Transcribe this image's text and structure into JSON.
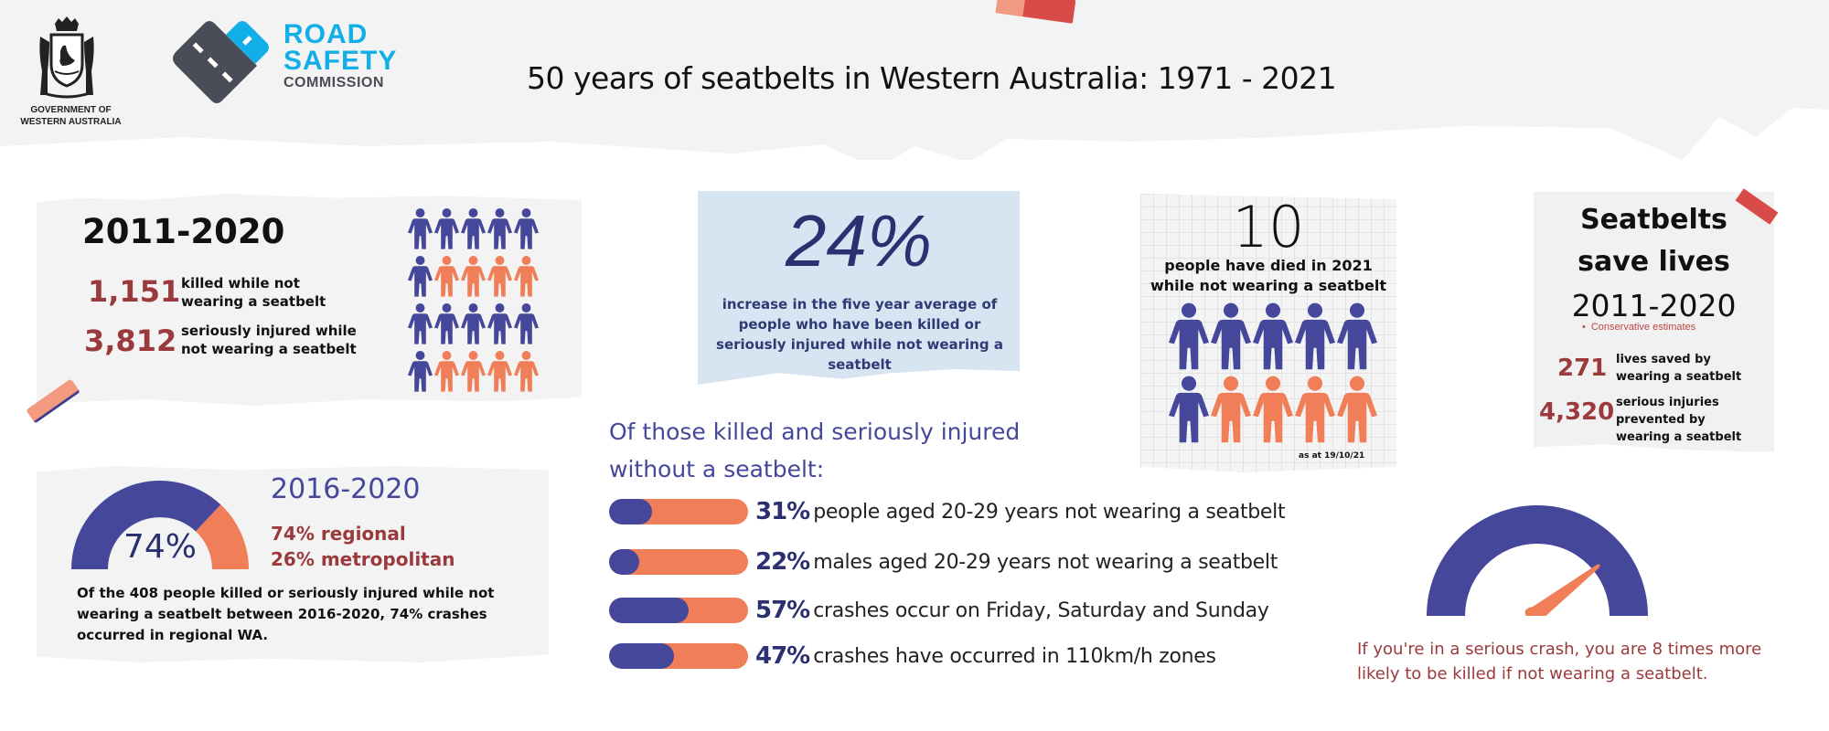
{
  "header": {
    "title": "50 years of seatbelts in Western Australia: 1971 - 2021",
    "gov_logo_text_line1": "GOVERNMENT OF",
    "gov_logo_text_line2": "WESTERN AUSTRALIA",
    "rsc_logo_line1": "ROAD",
    "rsc_logo_line2": "SAFETY",
    "rsc_logo_line3": "COMMISSION"
  },
  "colors": {
    "navy": "#45479b",
    "dark_navy": "#2b3071",
    "orange": "#f07e58",
    "maroon": "#9b3a3c",
    "road_blue": "#12aee8",
    "road_grey": "#4a4d57",
    "panel_grey": "#f3f3f3",
    "panel_blue": "#d7e4f1"
  },
  "panel_2011_2020": {
    "year": "2011-2020",
    "stats": [
      {
        "value": "1,151",
        "label_line1": "killed while not",
        "label_line2": "wearing a seatbelt"
      },
      {
        "value": "3,812",
        "label_line1": "seriously injured while",
        "label_line2": "not wearing a seatbelt"
      }
    ],
    "people_grid": {
      "rows": 4,
      "cols": 5,
      "colors": [
        "navy",
        "navy",
        "navy",
        "navy",
        "navy",
        "navy",
        "orange",
        "orange",
        "orange",
        "orange",
        "navy",
        "navy",
        "navy",
        "navy",
        "navy",
        "navy",
        "orange",
        "orange",
        "orange",
        "orange"
      ]
    }
  },
  "panel_increase": {
    "value": "24%",
    "description": "increase in the five year average of people who have been killed or seriously injured while not wearing a seatbelt"
  },
  "panel_2021_deaths": {
    "value": "10",
    "description_line1": "people have died in 2021",
    "description_line2": "while not wearing a seatbelt",
    "as_at": "as at 19/10/21",
    "people_grid": {
      "rows": 2,
      "cols": 5,
      "colors": [
        "navy",
        "navy",
        "navy",
        "navy",
        "navy",
        "navy",
        "orange",
        "orange",
        "orange",
        "orange"
      ]
    }
  },
  "panel_save_lives": {
    "title_line1": "Seatbelts",
    "title_line2": "save lives",
    "years": "2011-2020",
    "note": "Conservative estimates",
    "stats": [
      {
        "value": "271",
        "label_line1": "lives saved by",
        "label_line2": "wearing a seatbelt",
        "label_line3": ""
      },
      {
        "value": "4,320",
        "label_line1": "serious injuries",
        "label_line2": "prevented by",
        "label_line3": "wearing a seatbelt"
      }
    ]
  },
  "panel_2016_2020": {
    "year": "2016-2020",
    "gauge_value": "74%",
    "regional": "74% regional",
    "metropolitan": "26% metropolitan",
    "description": "Of the 408  people killed or seriously injured while not wearing a seatbelt between  2016-2020, 74% crashes occurred in regional WA."
  },
  "bars": {
    "heading_line1": "Of those killed and seriously injured",
    "heading_line2": "without a seatbelt:",
    "items": [
      {
        "pct": "31%",
        "value": 31,
        "label": "people aged 20-29 years not wearing a seatbelt"
      },
      {
        "pct": "22%",
        "value": 22,
        "label": "males aged 20-29 years not wearing a seatbelt"
      },
      {
        "pct": "57%",
        "value": 57,
        "label": "crashes occur on Friday, Saturday and Sunday"
      },
      {
        "pct": "47%",
        "value": 47,
        "label": "crashes have occurred in 110km/h zones"
      }
    ]
  },
  "speedometer": {
    "text_line1": "If you're in a serious crash, you are 8 times more",
    "text_line2": "likely to be killed if not wearing a seatbelt."
  },
  "chart_data": [
    {
      "type": "pie",
      "title": "2016-2020",
      "categories": [
        "regional",
        "metropolitan"
      ],
      "values": [
        74,
        26
      ],
      "center_label": "74%"
    },
    {
      "type": "bar",
      "title": "Of those killed and seriously injured without a seatbelt:",
      "categories": [
        "people aged 20-29 years not wearing a seatbelt",
        "males aged 20-29 years not wearing a seatbelt",
        "crashes occur on Friday, Saturday and Sunday",
        "crashes have occurred in 110km/h zones"
      ],
      "values": [
        31,
        22,
        57,
        47
      ],
      "ylim": [
        0,
        100
      ],
      "orientation": "horizontal"
    }
  ]
}
